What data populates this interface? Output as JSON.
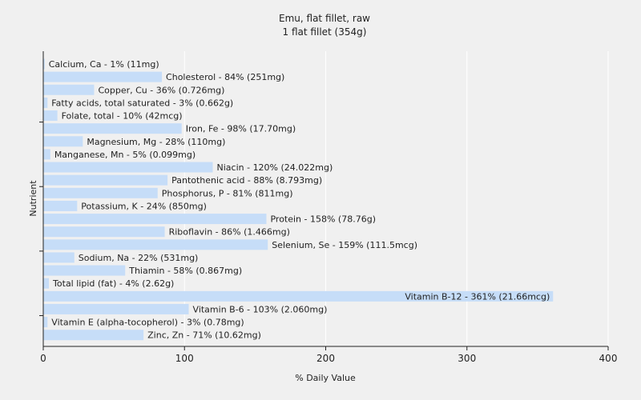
{
  "chart_data": {
    "type": "bar",
    "orientation": "horizontal",
    "title": "Emu, flat fillet, raw",
    "subtitle": "1 flat fillet (354g)",
    "xlabel": "% Daily Value",
    "ylabel": "Nutrient",
    "xlim": [
      0,
      400
    ],
    "xticks": [
      0,
      100,
      200,
      300,
      400
    ],
    "grid": true,
    "bar_color": "#c6ddf8",
    "grid_color": "#ffffff",
    "background_color": "#f0f0f0",
    "categories": [
      "Calcium, Ca",
      "Cholesterol",
      "Copper, Cu",
      "Fatty acids, total saturated",
      "Folate, total",
      "Iron, Fe",
      "Magnesium, Mg",
      "Manganese, Mn",
      "Niacin",
      "Pantothenic acid",
      "Phosphorus, P",
      "Potassium, K",
      "Protein",
      "Riboflavin",
      "Selenium, Se",
      "Sodium, Na",
      "Thiamin",
      "Total lipid (fat)",
      "Vitamin B-12",
      "Vitamin B-6",
      "Vitamin E (alpha-tocopherol)",
      "Zinc, Zn"
    ],
    "values": [
      1,
      84,
      36,
      3,
      10,
      98,
      28,
      5,
      120,
      88,
      81,
      24,
      158,
      86,
      159,
      22,
      58,
      4,
      361,
      103,
      3,
      71
    ],
    "labels": [
      "Calcium, Ca - 1% (11mg)",
      "Cholesterol - 84% (251mg)",
      "Copper, Cu - 36% (0.726mg)",
      "Fatty acids, total saturated - 3% (0.662g)",
      "Folate, total - 10% (42mcg)",
      "Iron, Fe - 98% (17.70mg)",
      "Magnesium, Mg - 28% (110mg)",
      "Manganese, Mn - 5% (0.099mg)",
      "Niacin - 120% (24.022mg)",
      "Pantothenic acid - 88% (8.793mg)",
      "Phosphorus, P - 81% (811mg)",
      "Potassium, K - 24% (850mg)",
      "Protein - 158% (78.76g)",
      "Riboflavin - 86% (1.466mg)",
      "Selenium, Se - 159% (111.5mcg)",
      "Sodium, Na - 22% (531mg)",
      "Thiamin - 58% (0.867mg)",
      "Total lipid (fat) - 4% (2.62g)",
      "Vitamin B-12 - 361% (21.66mcg)",
      "Vitamin B-6 - 103% (2.060mg)",
      "Vitamin E (alpha-tocopherol) - 3% (0.78mg)",
      "Zinc, Zn - 71% (10.62mg)"
    ]
  }
}
